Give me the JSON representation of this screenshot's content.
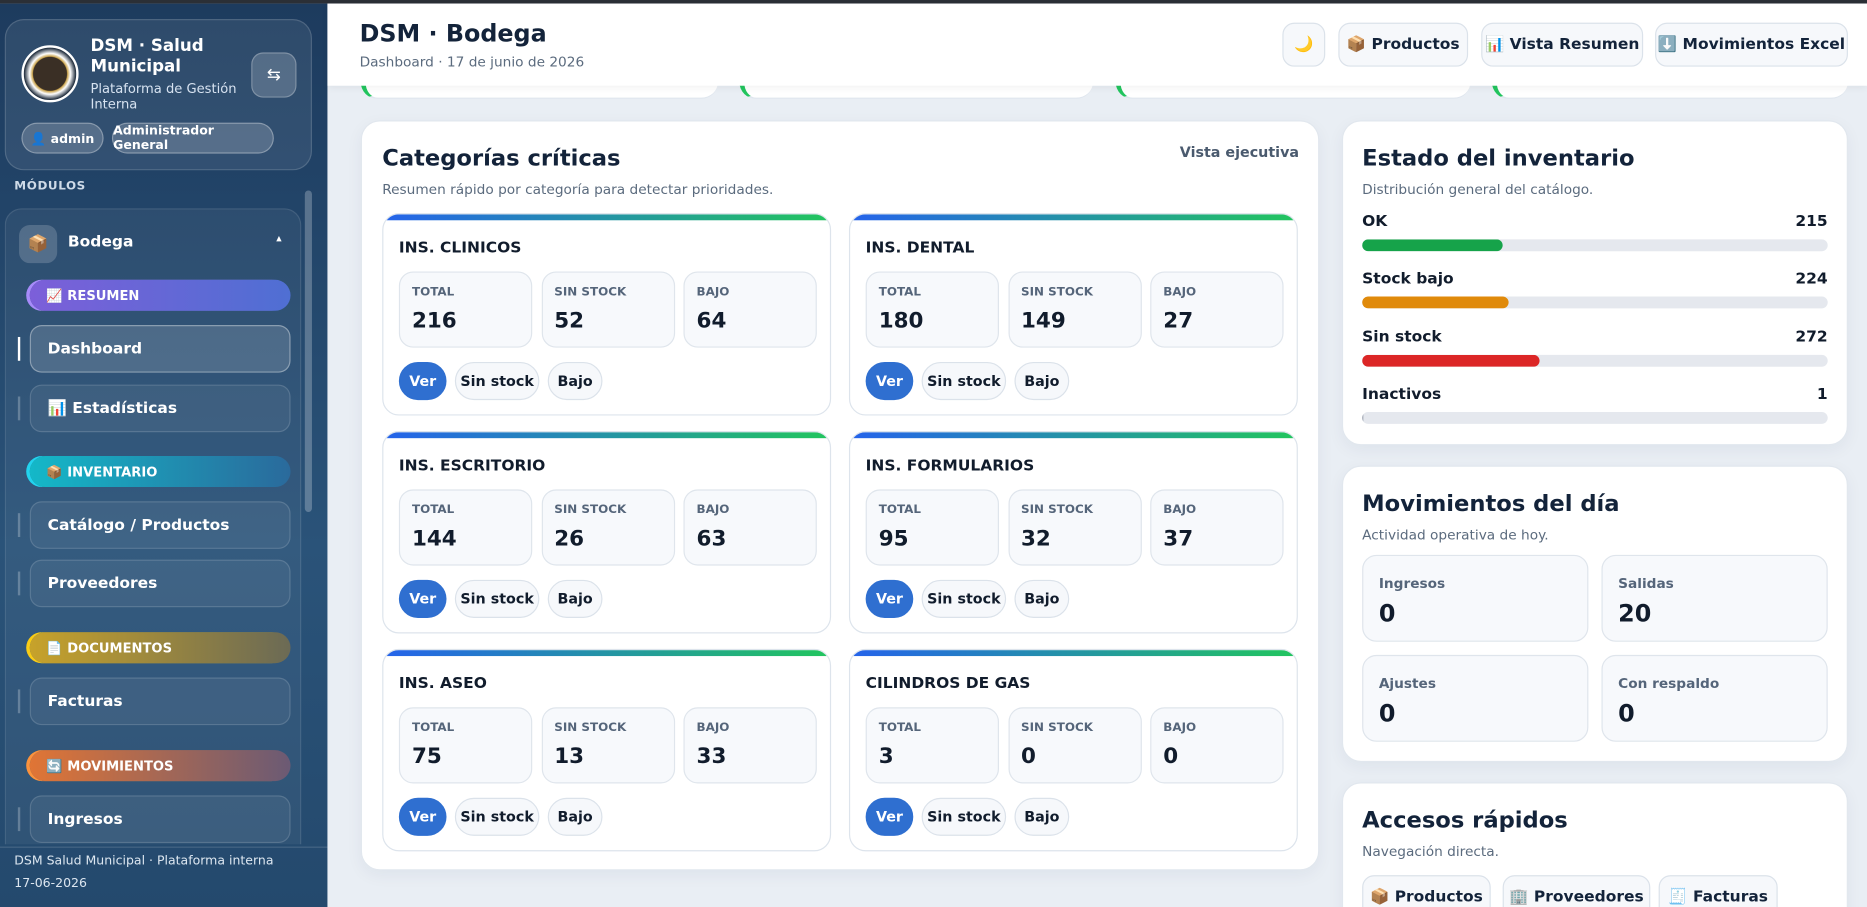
{
  "sidebar": {
    "brand": {
      "title": "DSM · Salud Municipal",
      "subtitle": "Plataforma de Gestión Interna"
    },
    "user": "👤 admin",
    "role": "Administrador General",
    "modules_label": "MÓDULOS",
    "module": {
      "icon": "📦",
      "label": "Bodega",
      "caret": "▴"
    },
    "nav": [
      {
        "section": "📈 RESUMEN",
        "items": [
          "Dashboard",
          "📊 Estadísticas"
        ]
      },
      {
        "section": "📦 INVENTARIO",
        "items": [
          "Catálogo / Productos",
          "Proveedores"
        ]
      },
      {
        "section": "📄 DOCUMENTOS",
        "items": [
          "Facturas"
        ]
      },
      {
        "section": "🔄 MOVIMIENTOS",
        "items": [
          "Ingresos"
        ]
      }
    ],
    "footer": {
      "line1": "DSM Salud Municipal · Plataforma interna",
      "line2": "17-06-2026"
    },
    "toggle": "⇆"
  },
  "header": {
    "title": "DSM · Bodega",
    "subtitle": "Dashboard · 17 de junio de 2026",
    "buttons": [
      "🌙",
      "📦 Productos",
      "📊 Vista Resumen",
      "⬇️ Movimientos Excel"
    ]
  },
  "categories": {
    "title": "Categorías críticas",
    "subtitle": "Resumen rápido por categoría para detectar prioridades.",
    "link": "Vista ejecutiva",
    "stat_labels": [
      "TOTAL",
      "SIN STOCK",
      "BAJO"
    ],
    "actions": [
      "Ver",
      "Sin stock",
      "Bajo"
    ],
    "items": [
      {
        "name": "INS. CLINICOS",
        "total": 216,
        "sin_stock": 52,
        "bajo": 64
      },
      {
        "name": "INS. DENTAL",
        "total": 180,
        "sin_stock": 149,
        "bajo": 27
      },
      {
        "name": "INS. ESCRITORIO",
        "total": 144,
        "sin_stock": 26,
        "bajo": 63
      },
      {
        "name": "INS. FORMULARIOS",
        "total": 95,
        "sin_stock": 32,
        "bajo": 37
      },
      {
        "name": "INS. ASEO",
        "total": 75,
        "sin_stock": 13,
        "bajo": 33
      },
      {
        "name": "CILINDROS DE GAS",
        "total": 3,
        "sin_stock": 0,
        "bajo": 0
      }
    ]
  },
  "inventory": {
    "title": "Estado del inventario",
    "subtitle": "Distribución general del catálogo.",
    "rows": [
      {
        "label": "OK",
        "value": 215,
        "color": "#16a34a"
      },
      {
        "label": "Stock bajo",
        "value": 224,
        "color": "#e08a0b"
      },
      {
        "label": "Sin stock",
        "value": 272,
        "color": "#dc2626"
      },
      {
        "label": "Inactivos",
        "value": 1,
        "color": "#9ca3af"
      }
    ]
  },
  "movements": {
    "title": "Movimientos del día",
    "subtitle": "Actividad operativa de hoy.",
    "items": [
      {
        "label": "Ingresos",
        "value": 0
      },
      {
        "label": "Salidas",
        "value": 20
      },
      {
        "label": "Ajustes",
        "value": 0
      },
      {
        "label": "Con respaldo",
        "value": 0
      }
    ]
  },
  "quick": {
    "title": "Accesos rápidos",
    "subtitle": "Navegación directa.",
    "buttons": [
      "📦 Productos",
      "🏢 Proveedores",
      "🧾 Facturas"
    ]
  }
}
